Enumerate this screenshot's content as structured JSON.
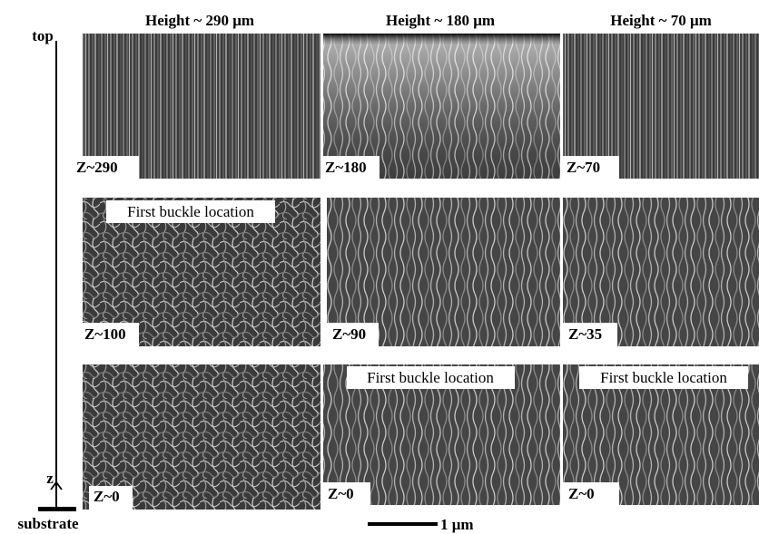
{
  "headers": [
    "Height ~ 290 μm",
    "Height ~ 180 μm",
    "Height ~ 70 μm"
  ],
  "panels": [
    [
      {
        "label": "Z~290"
      },
      {
        "label": "Z~180"
      },
      {
        "label": "Z~70"
      }
    ],
    [
      {
        "label": "Z~100",
        "annotation": "First buckle location"
      },
      {
        "label": "Z~90"
      },
      {
        "label": "Z~35"
      }
    ],
    [
      {
        "label": "Z~0"
      },
      {
        "label": "Z~0",
        "annotation": "First buckle location"
      },
      {
        "label": "Z~0",
        "annotation": "First buckle location"
      }
    ]
  ],
  "axis": {
    "top": "top",
    "z": "z",
    "bottom": "substrate"
  },
  "scale_bar": "1 μm"
}
